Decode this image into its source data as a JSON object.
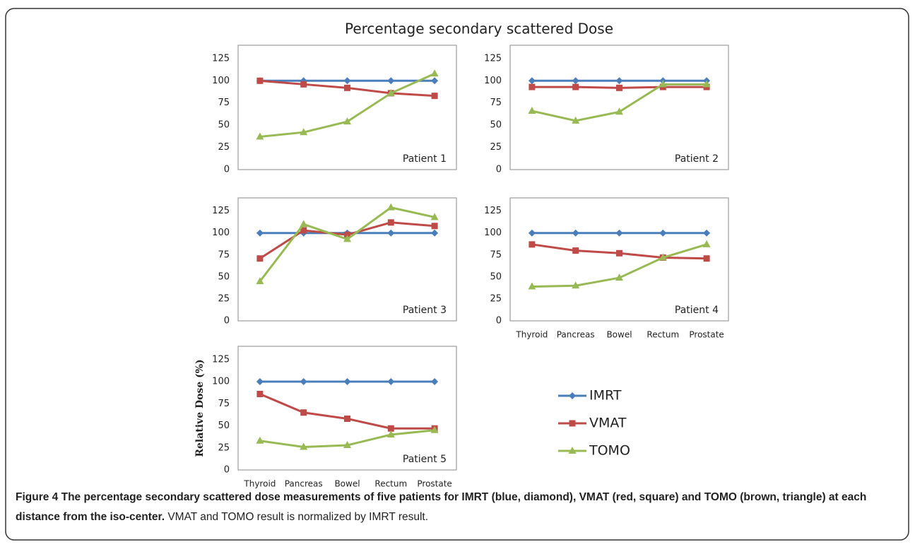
{
  "title": "Percentage secondary scattered Dose",
  "caption": {
    "bold": "Figure 4 The percentage secondary scattered dose measurements of five patients for IMRT (blue, diamond), VMAT (red, square) and TOMO (brown, triangle) at each distance from the iso-center.",
    "text": "VMAT and TOMO result is normalized by IMRT result."
  },
  "chart_data": [
    {
      "type": "line",
      "annotation": "Patient 1",
      "ylim": [
        0,
        140
      ],
      "yticks": [
        0,
        25,
        50,
        75,
        100,
        125
      ],
      "grid": false,
      "series": [
        {
          "name": "IMRT",
          "color": "#4a7ebb",
          "marker": "diamond",
          "values": [
            100,
            100,
            100,
            100,
            100
          ]
        },
        {
          "name": "VMAT",
          "color": "#be4b48",
          "marker": "square",
          "values": [
            100,
            96,
            92,
            86,
            83
          ]
        },
        {
          "name": "TOMO",
          "color": "#98b954",
          "marker": "triangle",
          "values": [
            37,
            42,
            54,
            86,
            108
          ]
        }
      ]
    },
    {
      "type": "line",
      "annotation": "Patient 2",
      "ylim": [
        0,
        140
      ],
      "yticks": [
        0,
        25,
        50,
        75,
        100,
        125
      ],
      "grid": false,
      "series": [
        {
          "name": "IMRT",
          "color": "#4a7ebb",
          "marker": "diamond",
          "values": [
            100,
            100,
            100,
            100,
            100
          ]
        },
        {
          "name": "VMAT",
          "color": "#be4b48",
          "marker": "square",
          "values": [
            93,
            93,
            92,
            93,
            93
          ]
        },
        {
          "name": "TOMO",
          "color": "#98b954",
          "marker": "triangle",
          "values": [
            66,
            55,
            65,
            96,
            96
          ]
        }
      ]
    },
    {
      "type": "line",
      "annotation": "Patient 3",
      "ylim": [
        0,
        140
      ],
      "yticks": [
        0,
        25,
        50,
        75,
        100,
        125
      ],
      "grid": false,
      "series": [
        {
          "name": "IMRT",
          "color": "#4a7ebb",
          "marker": "diamond",
          "values": [
            100,
            100,
            100,
            100,
            100
          ]
        },
        {
          "name": "VMAT",
          "color": "#be4b48",
          "marker": "square",
          "values": [
            71,
            103,
            98,
            112,
            108
          ]
        },
        {
          "name": "TOMO",
          "color": "#98b954",
          "marker": "triangle",
          "values": [
            45,
            110,
            93,
            129,
            118
          ]
        }
      ]
    },
    {
      "type": "line",
      "annotation": "Patient 4",
      "ylim": [
        0,
        140
      ],
      "yticks": [
        0,
        25,
        50,
        75,
        100,
        125
      ],
      "grid": false,
      "categories": [
        "Thyroid",
        "Pancreas",
        "Bowel",
        "Rectum",
        "Prostate"
      ],
      "series": [
        {
          "name": "IMRT",
          "color": "#4a7ebb",
          "marker": "diamond",
          "values": [
            100,
            100,
            100,
            100,
            100
          ]
        },
        {
          "name": "VMAT",
          "color": "#be4b48",
          "marker": "square",
          "values": [
            87,
            80,
            77,
            72,
            71
          ]
        },
        {
          "name": "TOMO",
          "color": "#98b954",
          "marker": "triangle",
          "values": [
            39,
            40,
            49,
            72,
            87
          ]
        }
      ]
    },
    {
      "type": "line",
      "annotation": "Patient 5",
      "ylabel": "Relative Dose (%)",
      "ylim": [
        0,
        140
      ],
      "yticks": [
        0,
        25,
        50,
        75,
        100,
        125
      ],
      "grid": false,
      "categories": [
        "Thyroid",
        "Pancreas",
        "Bowel",
        "Rectum",
        "Prostate"
      ],
      "series": [
        {
          "name": "IMRT",
          "color": "#4a7ebb",
          "marker": "diamond",
          "values": [
            100,
            100,
            100,
            100,
            100
          ]
        },
        {
          "name": "VMAT",
          "color": "#be4b48",
          "marker": "square",
          "values": [
            86,
            65,
            58,
            47,
            47
          ]
        },
        {
          "name": "TOMO",
          "color": "#98b954",
          "marker": "triangle",
          "values": [
            33,
            26,
            28,
            40,
            45
          ]
        }
      ]
    }
  ]
}
